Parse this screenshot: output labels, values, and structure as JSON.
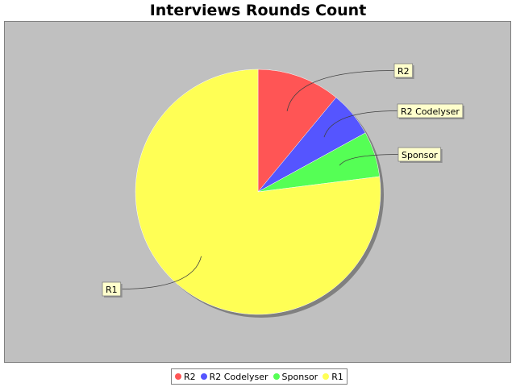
{
  "chart_data": {
    "type": "pie",
    "title": "Interviews Rounds Count",
    "slices": [
      {
        "label": "R2",
        "value": 11,
        "color": "#ff5555"
      },
      {
        "label": "R2 Codelyser",
        "value": 6,
        "color": "#5555ff"
      },
      {
        "label": "Sponsor",
        "value": 6,
        "color": "#55ff55"
      },
      {
        "label": "R1",
        "value": 77,
        "color": "#ffff55"
      }
    ],
    "legend": {
      "position": "bottom",
      "entries": [
        "R2",
        "R2 Codelyser",
        "Sponsor",
        "R1"
      ]
    },
    "background_color": "#c0c0c0",
    "label_box_color": "#ffffcc"
  }
}
